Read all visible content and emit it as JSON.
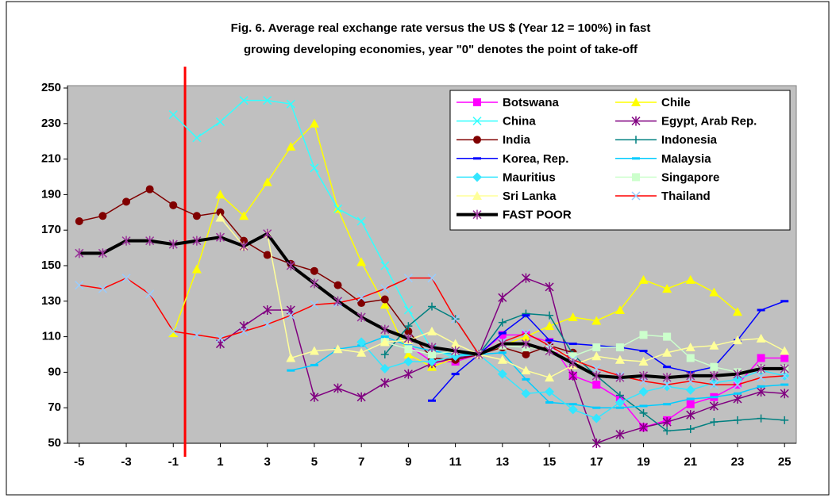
{
  "chart_data": {
    "type": "line",
    "title": [
      "Fig. 6. Average real exchange rate versus the US $ (Year 12 = 100%)  in fast",
      "growing developing economies, year \"0\" denotes the point of take-off"
    ],
    "x": [
      -5,
      -4,
      -3,
      -2,
      -1,
      0,
      1,
      2,
      3,
      4,
      5,
      6,
      7,
      8,
      9,
      10,
      11,
      12,
      13,
      14,
      15,
      16,
      17,
      18,
      19,
      20,
      21,
      22,
      23,
      24,
      25
    ],
    "xlim": [
      -5.5,
      25.5
    ],
    "xticks": [
      -5,
      -3,
      -1,
      1,
      3,
      5,
      7,
      9,
      11,
      13,
      15,
      17,
      19,
      21,
      23,
      25
    ],
    "ylim": [
      50,
      250
    ],
    "yticks": [
      50,
      70,
      90,
      110,
      130,
      150,
      170,
      190,
      210,
      230,
      250
    ],
    "grid": false,
    "legend": "upper right",
    "vline_x": -0.5,
    "vline_color": "#ff0000",
    "series": [
      {
        "name": "Botswana",
        "color": "#ff00ff",
        "marker": "square",
        "values": [
          null,
          null,
          null,
          null,
          null,
          null,
          null,
          null,
          null,
          null,
          null,
          null,
          null,
          null,
          105,
          96,
          96,
          100,
          111,
          111,
          107,
          88,
          83,
          75,
          59,
          63,
          72,
          76,
          83,
          98,
          98
        ]
      },
      {
        "name": "Chile",
        "color": "#ffff00",
        "marker": "triangle",
        "values": [
          null,
          null,
          null,
          null,
          112,
          148,
          190,
          178,
          197,
          217,
          230,
          182,
          152,
          128,
          100,
          93,
          98,
          100,
          105,
          110,
          116,
          121,
          119,
          125,
          142,
          137,
          142,
          135,
          124,
          null,
          null
        ]
      },
      {
        "name": "China",
        "color": "#33ffff",
        "marker": "x",
        "values": [
          null,
          null,
          null,
          null,
          235,
          222,
          231,
          243,
          243,
          241,
          205,
          182,
          175,
          150,
          125,
          103,
          98,
          100,
          null,
          null,
          null,
          null,
          null,
          null,
          null,
          null,
          null,
          null,
          null,
          null,
          null
        ]
      },
      {
        "name": "Egypt, Arab Rep.",
        "color": "#800080",
        "marker": "star",
        "values": [
          null,
          null,
          null,
          null,
          null,
          null,
          106,
          116,
          125,
          125,
          76,
          81,
          76,
          84,
          89,
          95,
          98,
          100,
          132,
          143,
          138,
          88,
          50,
          55,
          59,
          62,
          66,
          71,
          75,
          79,
          78
        ]
      },
      {
        "name": "India",
        "color": "#800000",
        "marker": "circle",
        "values": [
          175,
          178,
          186,
          193,
          184,
          178,
          180,
          164,
          156,
          151,
          147,
          139,
          129,
          131,
          113,
          98,
          97,
          100,
          104,
          100,
          105,
          101,
          null,
          null,
          null,
          null,
          null,
          null,
          null,
          null,
          null
        ]
      },
      {
        "name": "Indonesia",
        "color": "#008080",
        "marker": "plus",
        "values": [
          null,
          null,
          null,
          null,
          null,
          null,
          null,
          null,
          null,
          null,
          null,
          null,
          null,
          100,
          116,
          127,
          120,
          100,
          118,
          123,
          122,
          100,
          88,
          77,
          67,
          57,
          58,
          62,
          63,
          64,
          63
        ]
      },
      {
        "name": "Korea, Rep.",
        "color": "#0000ff",
        "marker": "dash",
        "values": [
          null,
          null,
          null,
          null,
          null,
          null,
          null,
          null,
          null,
          null,
          null,
          null,
          null,
          null,
          null,
          74,
          89,
          100,
          112,
          122,
          108,
          106,
          105,
          104,
          102,
          93,
          90,
          93,
          108,
          125,
          130
        ]
      },
      {
        "name": "Malaysia",
        "color": "#00ccff",
        "marker": "dash",
        "values": [
          null,
          null,
          null,
          null,
          null,
          null,
          null,
          null,
          null,
          91,
          94,
          103,
          105,
          110,
          105,
          102,
          100,
          100,
          101,
          86,
          73,
          72,
          70,
          70,
          71,
          72,
          75,
          76,
          78,
          82,
          83
        ]
      },
      {
        "name": "Mauritius",
        "color": "#33e6ff",
        "marker": "diamond",
        "values": [
          null,
          null,
          null,
          null,
          null,
          null,
          null,
          null,
          null,
          null,
          null,
          null,
          107,
          92,
          96,
          96,
          99,
          100,
          89,
          78,
          79,
          69,
          64,
          73,
          79,
          82,
          80,
          84,
          86,
          91,
          88
        ]
      },
      {
        "name": "Singapore",
        "color": "#ccffcc",
        "marker": "square",
        "values": [
          null,
          null,
          null,
          null,
          null,
          null,
          null,
          null,
          null,
          null,
          null,
          null,
          null,
          107,
          103,
          100,
          102,
          100,
          105,
          104,
          103,
          99,
          104,
          104,
          111,
          110,
          98,
          93,
          90,
          92,
          92
        ]
      },
      {
        "name": "Sri Lanka",
        "color": "#ffff99",
        "marker": "triangle",
        "values": [
          null,
          null,
          null,
          null,
          null,
          null,
          177,
          161,
          168,
          98,
          102,
          103,
          101,
          107,
          108,
          113,
          106,
          100,
          97,
          91,
          87,
          94,
          99,
          97,
          96,
          101,
          104,
          105,
          108,
          109,
          102
        ]
      },
      {
        "name": "Thailand",
        "color": "#ff0000",
        "marker": "x",
        "marker_color": "#99ccff",
        "values": [
          139,
          137,
          143,
          134,
          113,
          111,
          109,
          113,
          117,
          122,
          128,
          129,
          132,
          137,
          143,
          143,
          120,
          100,
          107,
          112,
          105,
          97,
          92,
          88,
          85,
          83,
          85,
          83,
          83,
          87,
          88
        ]
      },
      {
        "name": "FAST POOR",
        "color": "#000000",
        "marker": "star",
        "marker_color": "#993399",
        "width": 4,
        "values": [
          157,
          157,
          164,
          164,
          162,
          164,
          166,
          161,
          168,
          150,
          140,
          130,
          121,
          114,
          109,
          104,
          102,
          100,
          106,
          106,
          102,
          95,
          88,
          87,
          88,
          87,
          88,
          88,
          89,
          92,
          92
        ]
      }
    ]
  }
}
